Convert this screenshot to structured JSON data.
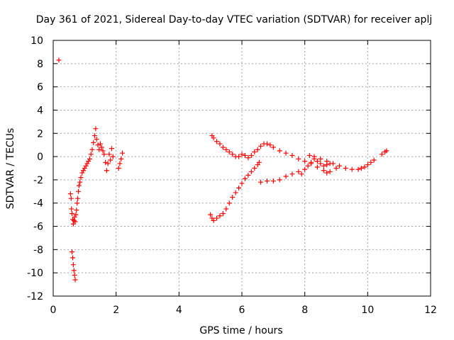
{
  "chart_data": {
    "type": "scatter",
    "title": "Day 361 of 2021, Sidereal Day-to-day VTEC variation (SDTVAR) for receiver aplj",
    "xlabel": "GPS time / hours",
    "ylabel": "SDTVAR / TECUs",
    "xlim": [
      0,
      12
    ],
    "ylim": [
      -12,
      10
    ],
    "x_ticks": [
      0,
      2,
      4,
      6,
      8,
      10,
      12
    ],
    "y_ticks": [
      -12,
      -10,
      -8,
      -6,
      -4,
      -2,
      0,
      2,
      4,
      6,
      8,
      10
    ],
    "grid": true,
    "marker": "+",
    "color": "#ff0000",
    "series": [
      {
        "points": [
          [
            0.18,
            8.3
          ],
          [
            0.55,
            -3.2
          ],
          [
            0.57,
            -3.6
          ],
          [
            0.58,
            -4.5
          ],
          [
            0.6,
            -4.9
          ],
          [
            0.62,
            -5.4
          ],
          [
            0.64,
            -5.8
          ],
          [
            0.66,
            -5.5
          ],
          [
            0.68,
            -5.2
          ],
          [
            0.7,
            -5.6
          ],
          [
            0.72,
            -5.0
          ],
          [
            0.74,
            -4.6
          ],
          [
            0.76,
            -4.0
          ],
          [
            0.78,
            -3.6
          ],
          [
            0.8,
            -3.0
          ],
          [
            0.82,
            -2.5
          ],
          [
            0.85,
            -2.2
          ],
          [
            0.88,
            -1.8
          ],
          [
            0.92,
            -1.4
          ],
          [
            0.96,
            -1.2
          ],
          [
            1.0,
            -1.0
          ],
          [
            1.04,
            -0.8
          ],
          [
            1.08,
            -0.6
          ],
          [
            1.12,
            -0.4
          ],
          [
            1.16,
            -0.2
          ],
          [
            1.2,
            0.2
          ],
          [
            1.24,
            0.6
          ],
          [
            1.28,
            1.2
          ],
          [
            1.32,
            1.8
          ],
          [
            1.35,
            2.4
          ],
          [
            1.38,
            1.5
          ],
          [
            1.42,
            1.0
          ],
          [
            1.46,
            0.6
          ],
          [
            1.5,
            1.1
          ],
          [
            1.54,
            0.8
          ],
          [
            1.58,
            0.5
          ],
          [
            1.62,
            0.2
          ],
          [
            1.66,
            -0.5
          ],
          [
            1.7,
            -1.2
          ],
          [
            1.74,
            -0.6
          ],
          [
            1.78,
            0.2
          ],
          [
            1.82,
            -0.3
          ],
          [
            1.86,
            0.7
          ],
          [
            1.9,
            0.0
          ],
          [
            2.08,
            -1.0
          ],
          [
            2.12,
            -0.6
          ],
          [
            2.16,
            -0.2
          ],
          [
            2.2,
            0.3
          ],
          [
            0.6,
            -8.2
          ],
          [
            0.62,
            -8.7
          ],
          [
            0.64,
            -9.3
          ],
          [
            0.66,
            -9.8
          ],
          [
            0.68,
            -10.2
          ],
          [
            0.7,
            -10.6
          ]
        ]
      },
      {
        "points": [
          [
            5.0,
            -5.0
          ],
          [
            5.05,
            -5.3
          ],
          [
            5.1,
            -5.5
          ],
          [
            5.2,
            -5.3
          ],
          [
            5.3,
            -5.1
          ],
          [
            5.4,
            -4.9
          ],
          [
            5.5,
            -4.5
          ],
          [
            5.6,
            -4.0
          ],
          [
            5.7,
            -3.5
          ],
          [
            5.8,
            -3.1
          ],
          [
            5.9,
            -2.7
          ],
          [
            6.0,
            -2.3
          ],
          [
            6.1,
            -1.9
          ],
          [
            6.2,
            -1.6
          ],
          [
            6.3,
            -1.3
          ],
          [
            6.4,
            -1.0
          ],
          [
            6.5,
            -0.7
          ],
          [
            6.55,
            -0.5
          ],
          [
            5.05,
            1.8
          ],
          [
            5.1,
            1.6
          ],
          [
            5.2,
            1.3
          ],
          [
            5.3,
            1.1
          ],
          [
            5.4,
            0.8
          ],
          [
            5.5,
            0.6
          ],
          [
            5.6,
            0.4
          ],
          [
            5.7,
            0.2
          ],
          [
            5.8,
            0.0
          ],
          [
            5.9,
            0.0
          ],
          [
            6.0,
            0.2
          ],
          [
            6.1,
            0.1
          ],
          [
            6.2,
            -0.1
          ],
          [
            6.3,
            0.1
          ],
          [
            6.4,
            0.4
          ],
          [
            6.5,
            0.6
          ],
          [
            6.6,
            0.9
          ],
          [
            6.7,
            1.1
          ],
          [
            6.8,
            1.1
          ],
          [
            6.9,
            1.0
          ],
          [
            7.0,
            0.8
          ],
          [
            7.2,
            0.5
          ],
          [
            7.4,
            0.3
          ],
          [
            7.6,
            0.1
          ],
          [
            7.8,
            -0.2
          ],
          [
            8.0,
            -0.4
          ],
          [
            8.2,
            -0.6
          ],
          [
            8.4,
            -0.9
          ],
          [
            8.6,
            -1.2
          ],
          [
            8.7,
            -1.4
          ],
          [
            8.8,
            -1.3
          ],
          [
            9.0,
            -1.0
          ],
          [
            6.6,
            -2.2
          ],
          [
            6.8,
            -2.1
          ],
          [
            7.0,
            -2.1
          ],
          [
            7.2,
            -2.0
          ],
          [
            7.4,
            -1.7
          ],
          [
            7.6,
            -1.5
          ],
          [
            7.8,
            -1.3
          ],
          [
            7.9,
            -1.5
          ],
          [
            8.0,
            -1.1
          ],
          [
            8.1,
            -0.8
          ],
          [
            8.2,
            -0.5
          ],
          [
            8.3,
            -0.2
          ],
          [
            8.4,
            -0.4
          ],
          [
            8.5,
            -0.6
          ],
          [
            8.6,
            -0.8
          ],
          [
            8.7,
            -0.7
          ],
          [
            8.8,
            -0.6
          ],
          [
            8.15,
            0.1
          ],
          [
            8.3,
            0.0
          ],
          [
            8.5,
            -0.2
          ],
          [
            8.7,
            -0.4
          ],
          [
            8.9,
            -0.6
          ],
          [
            9.1,
            -0.8
          ],
          [
            9.3,
            -1.0
          ],
          [
            9.5,
            -1.1
          ],
          [
            9.7,
            -1.1
          ],
          [
            9.8,
            -1.0
          ],
          [
            9.9,
            -0.9
          ],
          [
            10.0,
            -0.7
          ],
          [
            10.1,
            -0.5
          ],
          [
            10.2,
            -0.3
          ],
          [
            10.45,
            0.2
          ],
          [
            10.55,
            0.4
          ],
          [
            10.6,
            0.5
          ]
        ]
      }
    ]
  }
}
